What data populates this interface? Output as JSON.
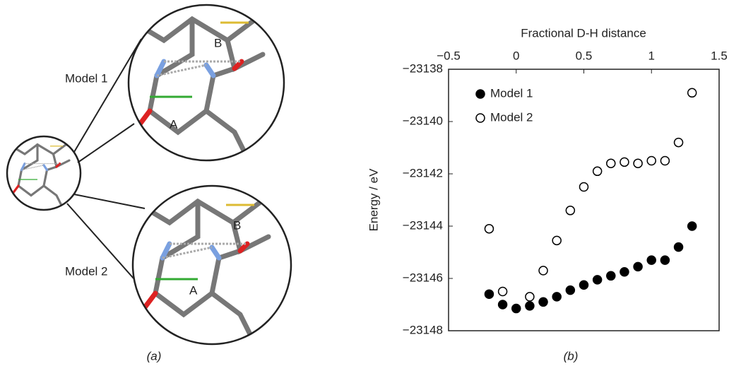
{
  "chart_data": {
    "type": "scatter",
    "caption": "(b)",
    "xlabel": "Fractional D-H distance",
    "ylabel": "Energy / eV",
    "x": [
      -0.2,
      -0.1,
      0,
      0.1,
      0.2,
      0.3,
      0.4,
      0.5,
      0.6,
      0.7,
      0.8,
      0.9,
      1.0,
      1.1,
      1.2,
      1.3
    ],
    "series": [
      {
        "name": "Model 1",
        "color": "#000000",
        "marker": "filled",
        "values": [
          -23146.6,
          -23147.0,
          -23147.15,
          -23147.05,
          -23146.9,
          -23146.7,
          -23146.45,
          -23146.25,
          -23146.05,
          -23145.9,
          -23145.75,
          -23145.55,
          -23145.3,
          -23145.3,
          -23144.8,
          -23144.0
        ]
      },
      {
        "name": "Model 2",
        "color": "#000000",
        "marker": "open",
        "values": [
          -23144.1,
          -23146.5,
          null,
          -23146.7,
          -23145.7,
          -23144.55,
          -23143.4,
          -23142.5,
          -23141.9,
          -23141.6,
          -23141.55,
          -23141.6,
          -23141.5,
          -23141.5,
          -23140.8,
          -23138.9
        ]
      }
    ],
    "xlim": [
      -0.5,
      1.5
    ],
    "xticks": [
      {
        "value": -0.5,
        "label": "−0.5"
      },
      0,
      0.5,
      1,
      1.5
    ],
    "ylim": [
      -23148,
      -23138
    ],
    "yticks": [
      {
        "value": -23148,
        "label": "−23148"
      },
      {
        "value": -23146,
        "label": "−23146"
      },
      {
        "value": -23144,
        "label": "−23144"
      },
      {
        "value": -23142,
        "label": "−23142"
      },
      {
        "value": -23140,
        "label": "−23140"
      },
      {
        "value": -23138,
        "label": "−23138"
      }
    ],
    "xaxis_position": "top",
    "legend": "upper-left"
  },
  "figure_a": {
    "caption": "(a)",
    "model_1": "Model 1",
    "model_2": "Model 2",
    "ring_a": "A",
    "ring_b": "B"
  }
}
